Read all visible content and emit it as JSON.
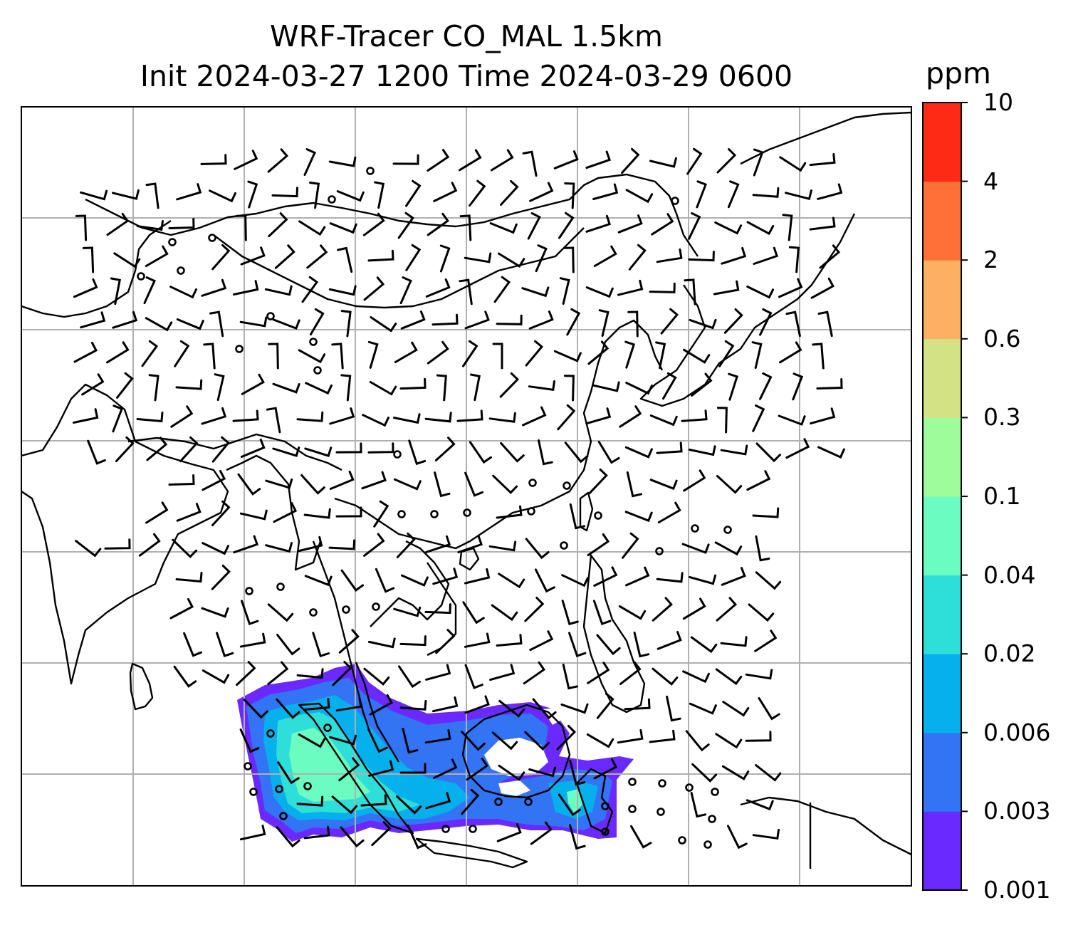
{
  "title": {
    "line1": "WRF-Tracer CO_MAL 1.5km",
    "line2": "Init 2024-03-27 1200 Time 2024-03-29 0600"
  },
  "colorbar": {
    "unit": "ppm",
    "ticks": [
      "0.001",
      "0.003",
      "0.006",
      "0.02",
      "0.04",
      "0.1",
      "0.3",
      "0.6",
      "2",
      "4",
      "10"
    ],
    "colors": [
      "#6a2aff",
      "#3374f5",
      "#06b0ec",
      "#2edfd9",
      "#6afcc0",
      "#9efd9a",
      "#d2e285",
      "#fdb064",
      "#ff7038",
      "#ff2a15"
    ]
  },
  "map": {
    "gridlines": true,
    "gridline_color": "#b0b0b0",
    "coastline_color": "#000000",
    "wind_barb_color": "#000000",
    "field": "CO tracer concentration at 1.5km",
    "plume_region": "Sumatra / Malay Peninsula / Borneo",
    "plume_levels": [
      "0.001–0.003",
      "0.003–0.006",
      "0.006–0.02",
      "0.02–0.04"
    ]
  }
}
